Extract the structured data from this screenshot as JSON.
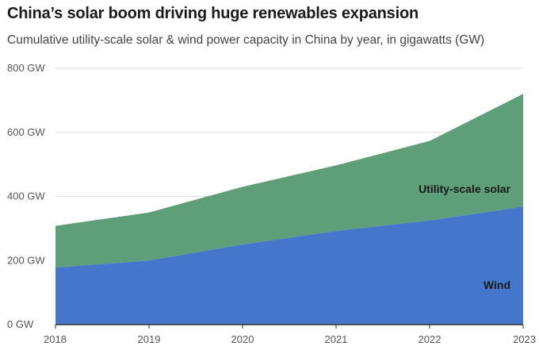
{
  "header": {
    "title": "China’s solar boom driving huge renewables expansion",
    "subtitle": "Cumulative utility-scale solar & wind power capacity in China by year, in gigawatts (GW)"
  },
  "colors": {
    "wind": "#4477cc",
    "solar": "#5e9e78",
    "grid": "#dddddd",
    "axis": "#333333"
  },
  "chart_data": {
    "type": "area",
    "stacked": true,
    "x": [
      2018,
      2019,
      2020,
      2021,
      2022,
      2023
    ],
    "x_tick_labels": [
      "2018",
      "2019",
      "2020",
      "2021",
      "2022",
      "2023"
    ],
    "y_tick_labels": [
      "0 GW",
      "200 GW",
      "400 GW",
      "600 GW",
      "800 GW"
    ],
    "y_ticks": [
      0,
      200,
      400,
      600,
      800
    ],
    "ylim": [
      0,
      800
    ],
    "unit": "GW",
    "grid": true,
    "series": [
      {
        "name": "Wind",
        "values": [
          178,
          200,
          250,
          292,
          325,
          368
        ]
      },
      {
        "name": "Utility-scale solar",
        "values": [
          130,
          150,
          180,
          205,
          248,
          352
        ]
      }
    ],
    "cumulative_top": [
      308,
      350,
      430,
      497,
      573,
      720
    ]
  }
}
